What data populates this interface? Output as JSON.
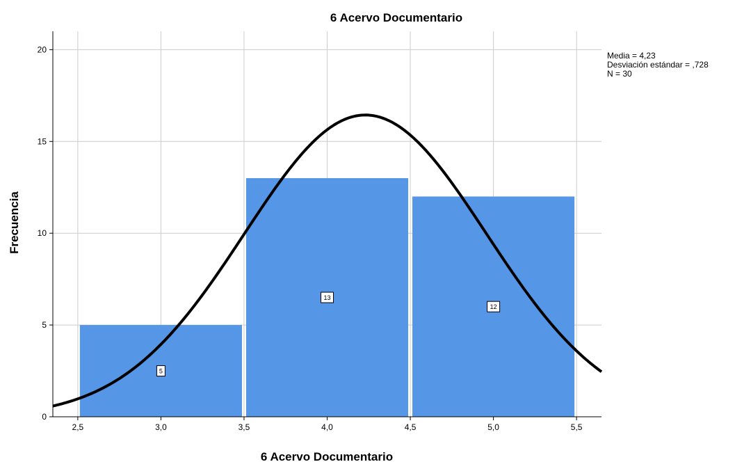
{
  "chart_data": {
    "type": "bar",
    "subtype": "histogram",
    "title": "6 Acervo Documentario",
    "xlabel": "6 Acervo Documentario",
    "ylabel": "Frecuencia",
    "bins": [
      {
        "start": 2.5,
        "end": 3.5,
        "value": 5,
        "label": "5"
      },
      {
        "start": 3.5,
        "end": 4.5,
        "value": 13,
        "label": "13"
      },
      {
        "start": 4.5,
        "end": 5.5,
        "value": 12,
        "label": "12"
      }
    ],
    "xlim": [
      2.35,
      5.65
    ],
    "ylim": [
      0,
      21
    ],
    "x_ticks": [
      {
        "value": 2.5,
        "label": "2,5"
      },
      {
        "value": 3.0,
        "label": "3,0"
      },
      {
        "value": 3.5,
        "label": "3,5"
      },
      {
        "value": 4.0,
        "label": "4,0"
      },
      {
        "value": 4.5,
        "label": "4,5"
      },
      {
        "value": 5.0,
        "label": "5,0"
      },
      {
        "value": 5.5,
        "label": "5,5"
      }
    ],
    "y_ticks": [
      {
        "value": 0,
        "label": "0"
      },
      {
        "value": 5,
        "label": "5"
      },
      {
        "value": 10,
        "label": "10"
      },
      {
        "value": 15,
        "label": "15"
      },
      {
        "value": 20,
        "label": "20"
      }
    ],
    "normal_curve": {
      "mean": 4.23,
      "sd": 0.728,
      "n": 30,
      "bin_width": 1.0
    },
    "stats_lines": [
      "Media = 4,23",
      "Desviación estándar = ,728",
      "N = 30"
    ],
    "grid": true,
    "legend": "none",
    "colors": {
      "bar": "#5596e6",
      "grid": "#cccccc",
      "curve": "#000000"
    }
  }
}
